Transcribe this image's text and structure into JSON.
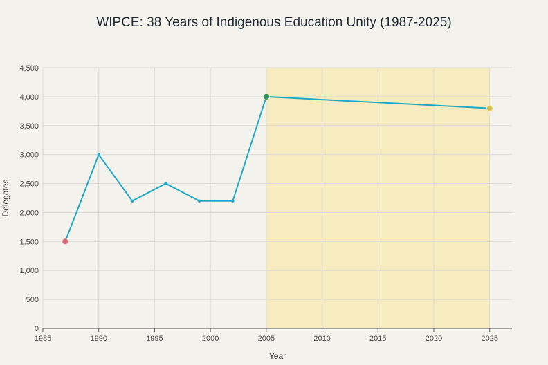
{
  "chart_data": {
    "type": "line",
    "title": "WIPCE: 38 Years of Indigenous Education Unity (1987-2025)",
    "xlabel": "Year",
    "ylabel": "Delegates",
    "xlim": [
      1985,
      2027
    ],
    "ylim": [
      0,
      4500
    ],
    "x_ticks": [
      1985,
      1990,
      1995,
      2000,
      2005,
      2010,
      2015,
      2020,
      2025
    ],
    "y_ticks": [
      0,
      500,
      1000,
      1500,
      2000,
      2500,
      3000,
      3500,
      4000,
      4500
    ],
    "y_tick_labels": [
      "0",
      "500",
      "1,000",
      "1,500",
      "2,000",
      "2,500",
      "3,000",
      "3,500",
      "4,000",
      "4,500"
    ],
    "grid": true,
    "highlight_range": [
      2005,
      2025
    ],
    "series": [
      {
        "x": [
          1987,
          1990,
          1993,
          1996,
          1999,
          2002,
          2005,
          2025
        ],
        "y": [
          1500,
          3000,
          2200,
          2500,
          2200,
          2200,
          4000,
          3800
        ]
      }
    ],
    "highlighted_points": [
      {
        "x": 1987,
        "y": 1500
      },
      {
        "x": 2005,
        "y": 4000
      },
      {
        "x": 2025,
        "y": 3800
      }
    ]
  },
  "colors": {
    "line": "#1fa8c6",
    "highlight_band": "#f6ecbf",
    "grid": "#dcdad4",
    "axis": "#555555",
    "point_start": "#e0606a",
    "point_peak": "#2e8b57",
    "point_end": "#e2c04a"
  }
}
